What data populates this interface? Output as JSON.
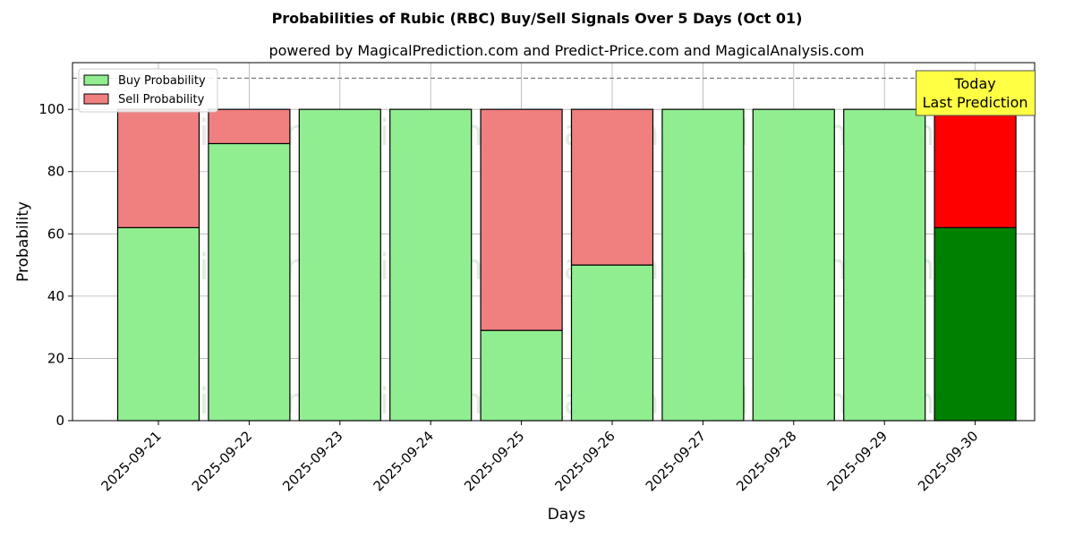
{
  "chart_data": {
    "type": "bar",
    "title": "Probabilities of Rubic (RBC) Buy/Sell Signals Over 5 Days (Oct 01)",
    "subtitle": "powered by MagicalPrediction.com and Predict-Price.com and MagicalAnalysis.com",
    "xlabel": "Days",
    "ylabel": "Probability",
    "ylim": [
      0,
      115
    ],
    "yticks": [
      0,
      20,
      40,
      60,
      80,
      100
    ],
    "reference_line": 110,
    "grid": true,
    "legend_position": "top-left",
    "categories": [
      "2025-09-21",
      "2025-09-22",
      "2025-09-23",
      "2025-09-24",
      "2025-09-25",
      "2025-09-26",
      "2025-09-27",
      "2025-09-28",
      "2025-09-29",
      "2025-09-30"
    ],
    "series": [
      {
        "name": "Buy Probability",
        "values": [
          62,
          89,
          100,
          100,
          29,
          50,
          100,
          100,
          100,
          62
        ],
        "color": "#90ee90",
        "highlight_color": "#008000"
      },
      {
        "name": "Sell Probability",
        "values": [
          38,
          11,
          0,
          0,
          71,
          50,
          0,
          0,
          0,
          38
        ],
        "color": "#f08080",
        "highlight_color": "#ff0000"
      }
    ],
    "highlight_index": 9,
    "annotation": {
      "lines": [
        "Today",
        "Last Prediction"
      ],
      "background": "#ffff44"
    },
    "watermarks": [
      "MagicalAnalysis.com",
      "MagicalPrediction.com"
    ]
  }
}
